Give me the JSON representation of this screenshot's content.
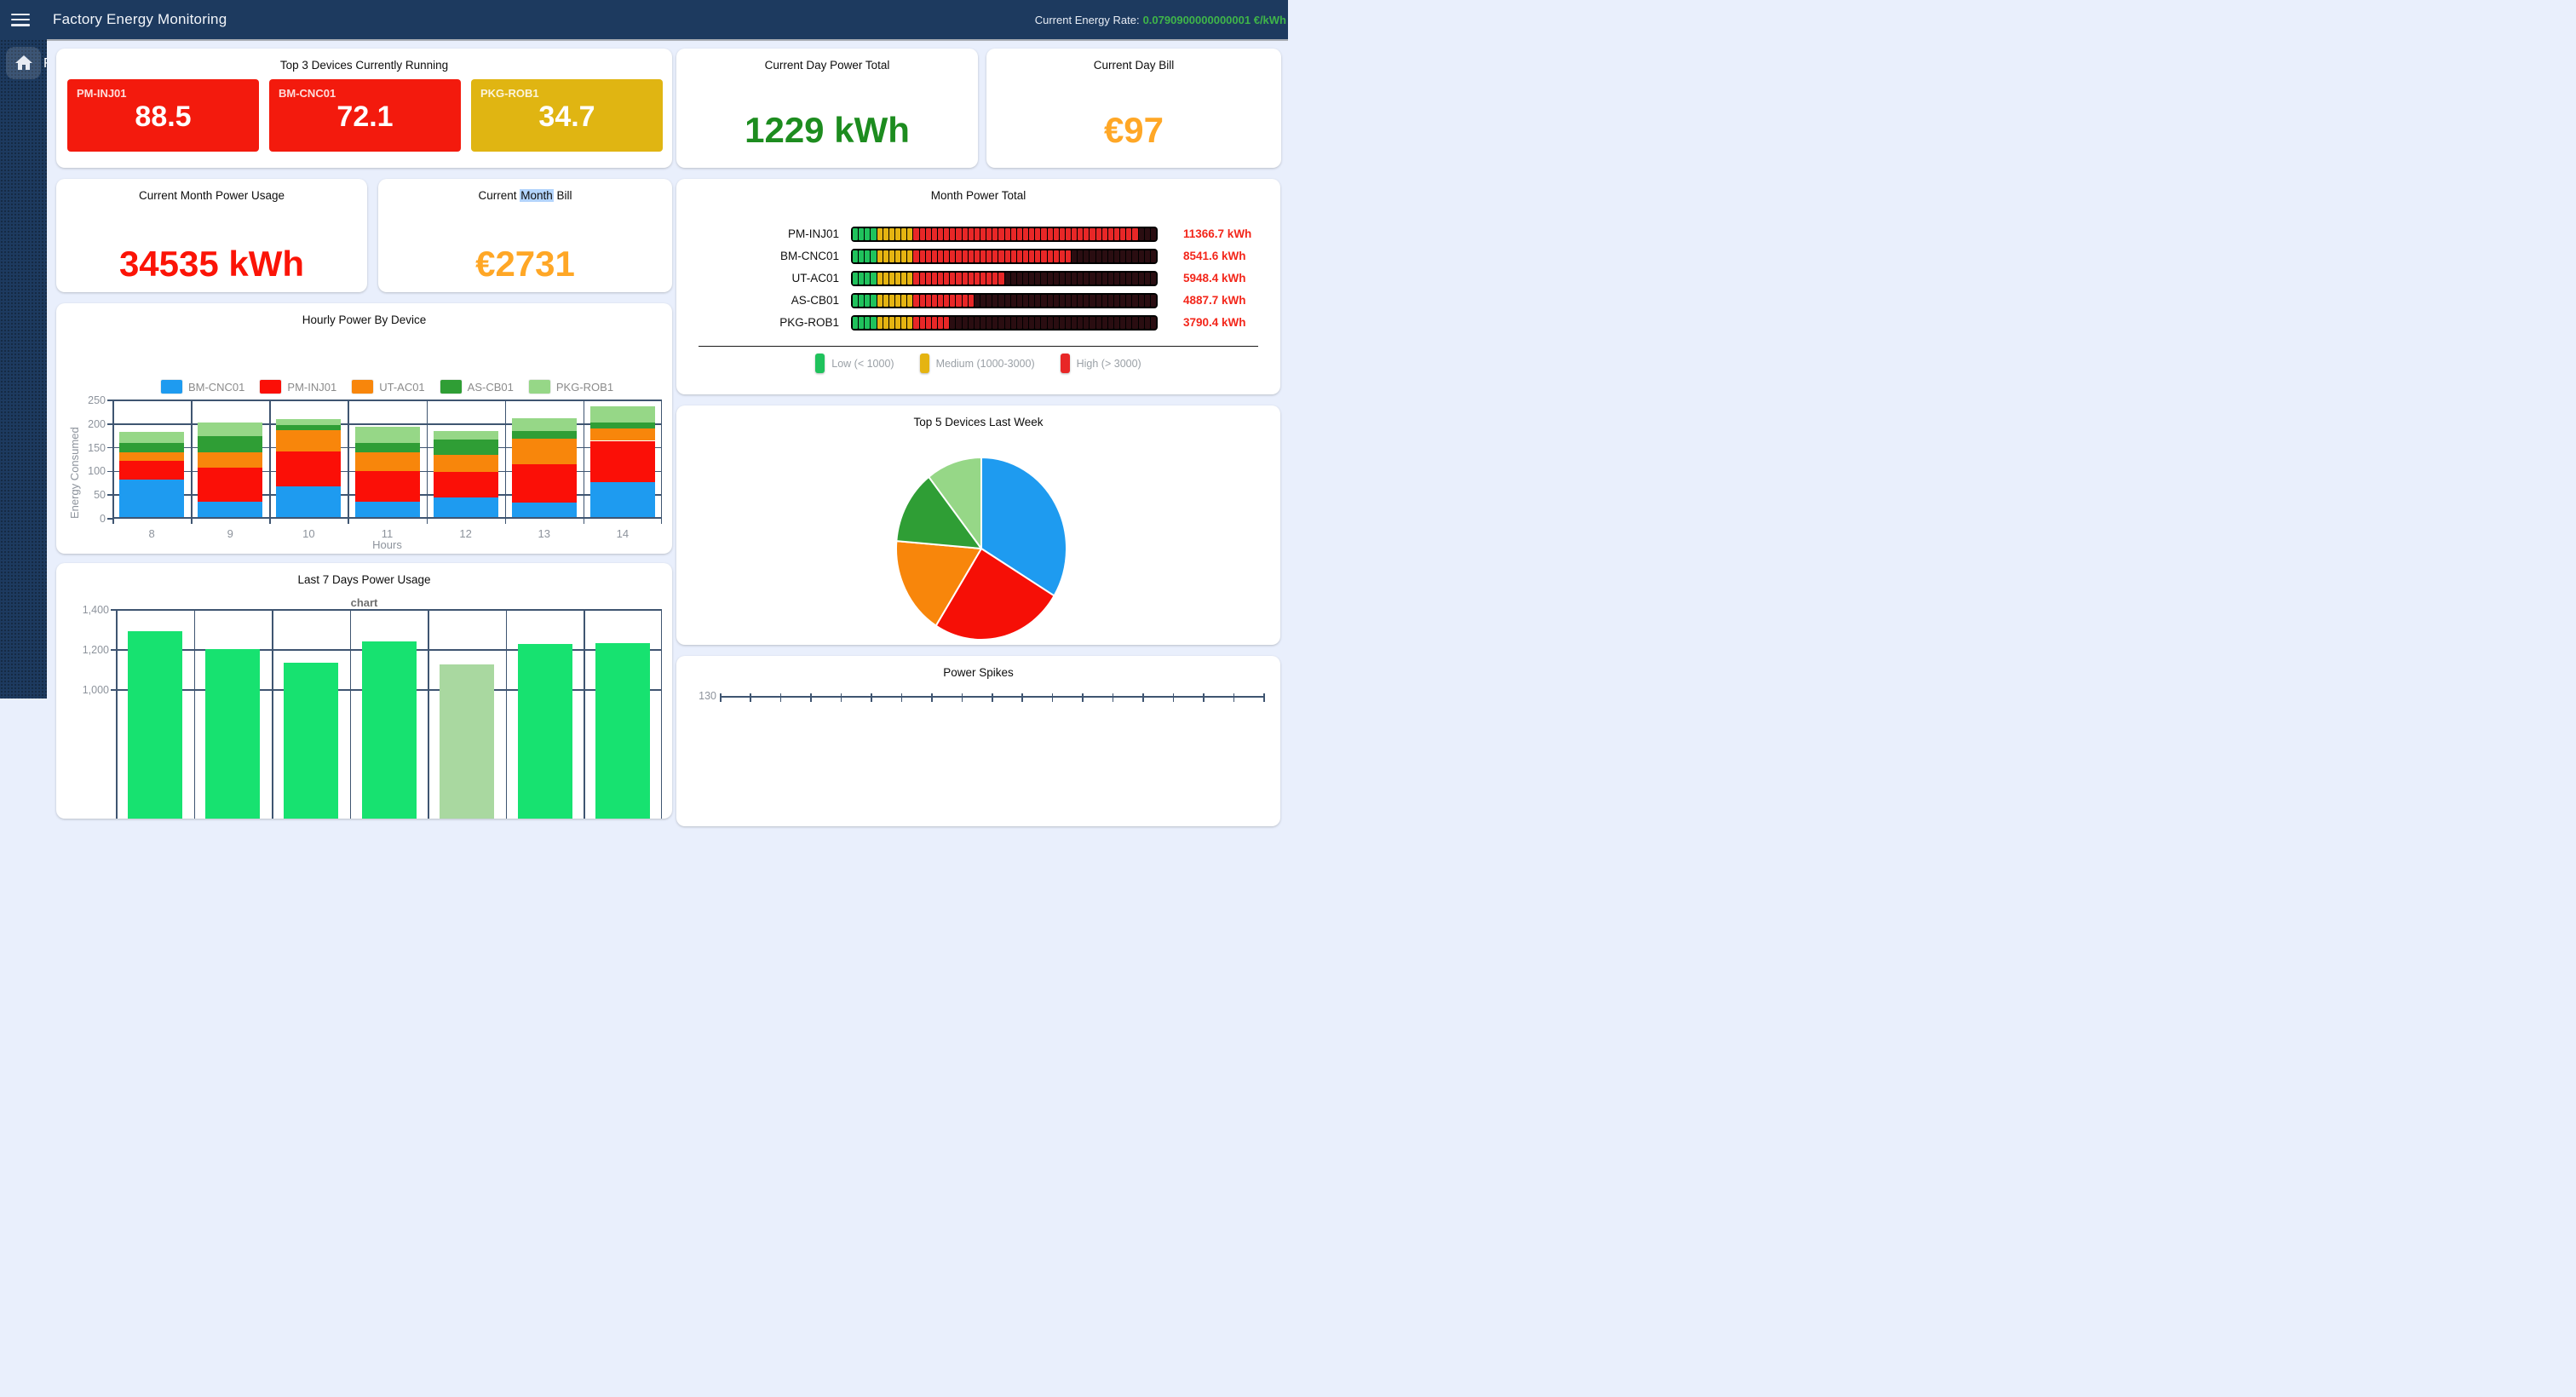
{
  "app_bar": {
    "title": "Factory Energy Monitoring",
    "rate_label": "Current Energy Rate:",
    "rate_value": "0.0790900000000001 €/kWh",
    "rate_color": "#3fb549"
  },
  "sidebar": {
    "partial_label": "F"
  },
  "colors": {
    "appbar_bg": "#1d3a5f",
    "content_bg": "#e9effc",
    "grid": "#3f5571",
    "tick_text": "#8d939c"
  },
  "cards": {
    "top3": {
      "title": "Top 3 Devices Currently Running",
      "tiles": [
        {
          "device": "PM-INJ01",
          "value": "88.5",
          "bg": "#f31a0d"
        },
        {
          "device": "BM-CNC01",
          "value": "72.1",
          "bg": "#f31a0d"
        },
        {
          "device": "PKG-ROB1",
          "value": "34.7",
          "bg": "#e0b512"
        }
      ]
    },
    "day_total": {
      "title": "Current Day Power Total",
      "value": "1229 kWh",
      "color": "#1d8c1f"
    },
    "day_bill": {
      "title": "Current Day Bill",
      "value": "€97",
      "color": "#ffa726"
    },
    "month_usage": {
      "title": "Current Month Power Usage",
      "value": "34535 kWh",
      "color": "#fb1407"
    },
    "month_bill": {
      "title_pre": "Current ",
      "title_selected": "Month",
      "title_post": " Bill",
      "selection_color": "#b3d4fc",
      "value": "€2731",
      "color": "#ffa726"
    }
  },
  "chart_data": [
    {
      "id": "month_gauge",
      "type": "segmented-gauge",
      "title": "Month Power Total",
      "max": 12000,
      "segments": 50,
      "green_segments": 4,
      "yellow_segments": 6,
      "zone_colors": {
        "low": "#1fc25c",
        "medium": "#e5b411",
        "high": "#e82727",
        "off": "#2a0d11"
      },
      "value_color": "#f3261a",
      "rows": [
        {
          "label": "PM-INJ01",
          "value": 11366.7,
          "display": "11366.7 kWh"
        },
        {
          "label": "BM-CNC01",
          "value": 8541.6,
          "display": "8541.6 kWh"
        },
        {
          "label": "UT-AC01",
          "value": 5948.4,
          "display": "5948.4 kWh"
        },
        {
          "label": "AS-CB01",
          "value": 4887.7,
          "display": "4887.7 kWh"
        },
        {
          "label": "PKG-ROB1",
          "value": 3790.4,
          "display": "3790.4 kWh"
        }
      ],
      "legend": [
        {
          "label": "Low (< 1000)",
          "color": "#1fc25c"
        },
        {
          "label": "Medium (1000-3000)",
          "color": "#e5b411"
        },
        {
          "label": "High (> 3000)",
          "color": "#e82727"
        }
      ],
      "legend_position": "bottom"
    },
    {
      "id": "hourly",
      "type": "stacked-bar",
      "title": "Hourly Power By Device",
      "xlabel": "Hours",
      "ylabel": "Energy Consumed",
      "ylim": [
        0,
        250
      ],
      "yticks": [
        0,
        50,
        100,
        150,
        200,
        250
      ],
      "grid": true,
      "legend_position": "top",
      "categories": [
        "8",
        "9",
        "10",
        "11",
        "12",
        "13",
        "14"
      ],
      "series": [
        {
          "name": "BM-CNC01",
          "color": "#1e9bf0",
          "values": [
            80,
            33,
            64,
            33,
            41,
            30,
            73
          ]
        },
        {
          "name": "PM-INJ01",
          "color": "#fb0f07",
          "values": [
            38,
            71,
            75,
            65,
            54,
            82,
            88
          ]
        },
        {
          "name": "UT-AC01",
          "color": "#f8860b",
          "values": [
            19,
            33,
            45,
            38,
            37,
            54,
            26
          ]
        },
        {
          "name": "AS-CB01",
          "color": "#2f9e35",
          "values": [
            20,
            33,
            10,
            21,
            32,
            16,
            12
          ]
        },
        {
          "name": "PKG-ROB1",
          "color": "#96d787",
          "values": [
            23,
            29,
            12,
            33,
            17,
            27,
            34
          ]
        }
      ]
    },
    {
      "id": "last7",
      "type": "bar",
      "title": "Last 7 Days Power Usage",
      "subtitle": "chart",
      "ylim_visible": [
        1000,
        1400
      ],
      "ytick_labels": [
        "1,400",
        "1,200",
        "1,000"
      ],
      "grid": true,
      "values": [
        1290,
        1200,
        1130,
        1240,
        1125,
        1225,
        1230
      ],
      "bar_color": "#17e270",
      "muted_bar_index": 4,
      "muted_bar_color": "#a9d8a0"
    },
    {
      "id": "pie",
      "type": "pie",
      "title": "Top 5 Devices Last Week",
      "slices": [
        {
          "label": "BM-CNC01",
          "percent": 33.7,
          "color": "#1e9bf0"
        },
        {
          "label": "PM-INJ01",
          "percent": 25.3,
          "color": "#f60f06"
        },
        {
          "label": "UT-AC01",
          "percent": 17.4,
          "color": "#f8860b"
        },
        {
          "label": "AS-CB01",
          "percent": 13.1,
          "color": "#2f9e35"
        },
        {
          "label": "PKG-ROB1",
          "percent": 10.6,
          "color": "#96d787"
        }
      ]
    },
    {
      "id": "spikes",
      "type": "line",
      "title": "Power Spikes",
      "ytick_top": "130"
    }
  ]
}
